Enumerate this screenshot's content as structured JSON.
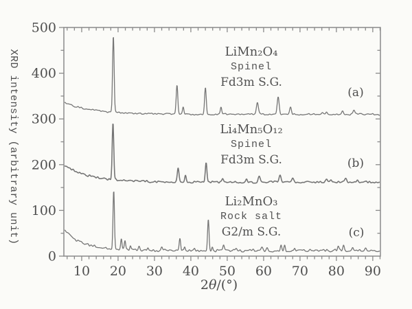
{
  "figure": {
    "background": "#fbfbf8",
    "frame_color": "#8a8a8a",
    "trace_color": "#757575",
    "text_color": "#4e4e4e"
  },
  "chart_data": {
    "type": "line",
    "title": "",
    "xlabel": "2θ/(°)",
    "xlabel_parts": [
      "2",
      "θ",
      "/(°)"
    ],
    "ylabel": "XRD intensity (arbitrary unit)",
    "xlim": [
      5.1,
      92.1
    ],
    "ylim": [
      0,
      500
    ],
    "x_major_ticks": [
      10,
      20,
      30,
      40,
      50,
      60,
      70,
      80,
      90
    ],
    "x_minor_step": 2,
    "y_major_ticks": [
      0,
      100,
      200,
      300,
      400,
      500
    ],
    "y_minor_step": 50,
    "grid": false,
    "legend_position": "none",
    "series": [
      {
        "name": "LiMn2O4 spinel Fd3m",
        "tag": "(a)",
        "label_lines": [
          "LiMn₂O₄",
          "Spinel",
          "Fd3m S.G."
        ],
        "baseline": 310,
        "bg_decay": {
          "amp": 26,
          "tau": 8
        },
        "noise_p2p": 3.0,
        "seed": 11,
        "stroke_width": 1.3,
        "peaks": [
          [
            18.7,
            168,
            0.3
          ],
          [
            36.2,
            64,
            0.32
          ],
          [
            37.9,
            16,
            0.28
          ],
          [
            44.0,
            58,
            0.32
          ],
          [
            48.3,
            15,
            0.28
          ],
          [
            58.3,
            26,
            0.38
          ],
          [
            64.0,
            38,
            0.38
          ],
          [
            67.4,
            16,
            0.34
          ],
          [
            76.1,
            5,
            0.3
          ],
          [
            77.3,
            5,
            0.3
          ],
          [
            81.7,
            8,
            0.34
          ],
          [
            84.8,
            8,
            0.34
          ]
        ]
      },
      {
        "name": "Li4Mn5O12 spinel Fd3m",
        "tag": "(b)",
        "label_lines": [
          "Li₄Mn₅O₁₂",
          "Spinel",
          "Fd3m S.G."
        ],
        "baseline": 162,
        "bg_decay": {
          "amp": 38,
          "tau": 7
        },
        "noise_p2p": 4.0,
        "seed": 23,
        "stroke_width": 1.6,
        "peaks": [
          [
            18.6,
            124,
            0.3
          ],
          [
            36.5,
            32,
            0.32
          ],
          [
            38.5,
            14,
            0.28
          ],
          [
            44.2,
            42,
            0.32
          ],
          [
            48.7,
            9,
            0.3
          ],
          [
            55.3,
            6,
            0.3
          ],
          [
            58.8,
            13,
            0.38
          ],
          [
            64.5,
            16,
            0.38
          ],
          [
            68.0,
            8,
            0.34
          ],
          [
            77.3,
            5,
            0.3
          ],
          [
            78.6,
            5,
            0.3
          ],
          [
            82.6,
            7,
            0.34
          ],
          [
            85.8,
            6,
            0.34
          ]
        ]
      },
      {
        "name": "Li2MnO3 rock salt G2/m",
        "tag": "(c)",
        "label_lines": [
          "Li₂MnO₃",
          "Rock salt",
          "G2/m S.G."
        ],
        "baseline": 12,
        "bg_decay": {
          "amp": 44,
          "tau": 5.5
        },
        "noise_p2p": 5.0,
        "seed": 37,
        "stroke_width": 1.3,
        "peaks": [
          [
            18.8,
            128,
            0.28
          ],
          [
            20.9,
            22,
            0.24
          ],
          [
            21.9,
            17,
            0.24
          ],
          [
            23.4,
            10,
            0.24
          ],
          [
            25.8,
            8,
            0.28
          ],
          [
            28.2,
            6,
            0.28
          ],
          [
            32.0,
            8,
            0.28
          ],
          [
            37.0,
            26,
            0.28
          ],
          [
            38.3,
            8,
            0.24
          ],
          [
            41.0,
            6,
            0.28
          ],
          [
            44.8,
            68,
            0.28
          ],
          [
            45.9,
            10,
            0.24
          ],
          [
            49.0,
            10,
            0.28
          ],
          [
            52.5,
            5,
            0.28
          ],
          [
            59.5,
            8,
            0.32
          ],
          [
            61.0,
            6,
            0.28
          ],
          [
            64.8,
            16,
            0.28
          ],
          [
            65.8,
            13,
            0.28
          ],
          [
            68.5,
            8,
            0.28
          ],
          [
            72.8,
            5,
            0.28
          ],
          [
            80.5,
            8,
            0.28
          ],
          [
            82.0,
            10,
            0.28
          ],
          [
            84.5,
            8,
            0.28
          ],
          [
            88.0,
            5,
            0.28
          ]
        ]
      }
    ]
  }
}
